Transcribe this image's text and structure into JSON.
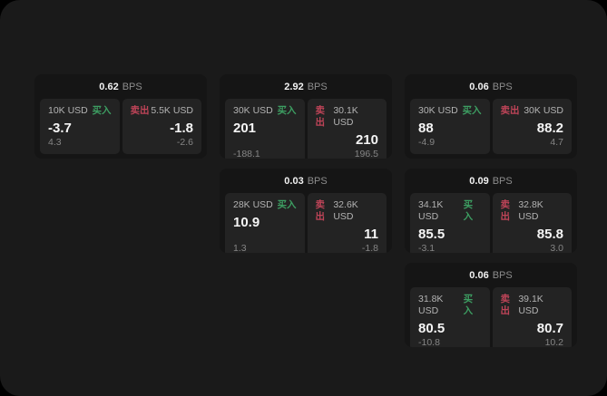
{
  "labels": {
    "bps_unit": "BPS",
    "buy": "买入",
    "sell": "卖出"
  },
  "colors": {
    "page_bg": "#1a1a1a",
    "outer_bg": "#000000",
    "card_bg": "#151515",
    "panel_bg": "#232323",
    "buy_green": "#3d9e62",
    "sell_red": "#bf4458"
  },
  "cards": [
    {
      "bps": "0.62",
      "buy": {
        "amount": "10K USD",
        "value": "-3.7",
        "sub": "4.3"
      },
      "sell": {
        "amount": "5.5K USD",
        "value": "-1.8",
        "sub": "-2.6"
      }
    },
    {
      "bps": "2.92",
      "buy": {
        "amount": "30K USD",
        "value": "201",
        "sub": "-188.1"
      },
      "sell": {
        "amount": "30.1K USD",
        "value": "210",
        "sub": "196.5"
      }
    },
    {
      "bps": "0.06",
      "buy": {
        "amount": "30K USD",
        "value": "88",
        "sub": "-4.9"
      },
      "sell": {
        "amount": "30K USD",
        "value": "88.2",
        "sub": "4.7"
      }
    },
    {
      "bps": "0.03",
      "buy": {
        "amount": "28K USD",
        "value": "10.9",
        "sub": "1.3"
      },
      "sell": {
        "amount": "32.6K USD",
        "value": "11",
        "sub": "-1.8"
      }
    },
    {
      "bps": "0.09",
      "buy": {
        "amount": "34.1K USD",
        "value": "85.5",
        "sub": "-3.1"
      },
      "sell": {
        "amount": "32.8K USD",
        "value": "85.8",
        "sub": "3.0"
      }
    },
    {
      "bps": "0.06",
      "buy": {
        "amount": "31.8K USD",
        "value": "80.5",
        "sub": "-10.8"
      },
      "sell": {
        "amount": "39.1K USD",
        "value": "80.7",
        "sub": "10.2"
      }
    }
  ]
}
